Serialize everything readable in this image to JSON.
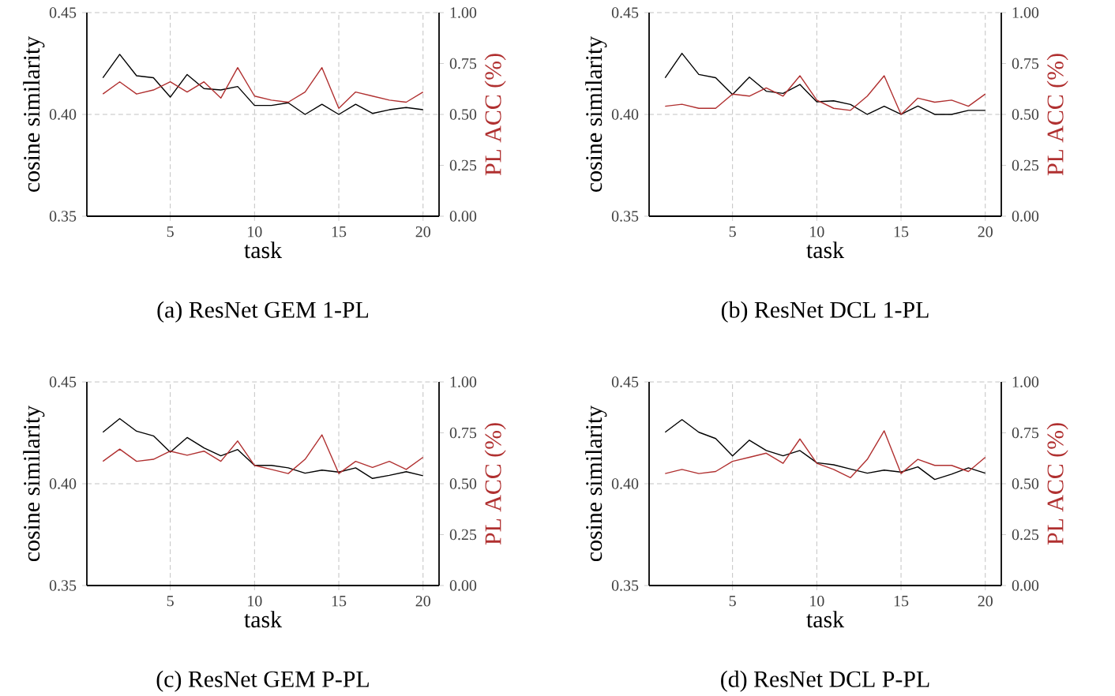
{
  "chart_data": [
    {
      "type": "line",
      "title": "(a) ResNet GEM 1-PL",
      "xlabel": "task",
      "ylabel": "cosine similarity",
      "y2label": "PL ACC (%)",
      "grid": true,
      "x": [
        1,
        2,
        3,
        4,
        5,
        6,
        7,
        8,
        9,
        10,
        11,
        12,
        13,
        14,
        15,
        16,
        17,
        18,
        19,
        20
      ],
      "xlim": [
        0.05,
        20.95
      ],
      "xticks": [
        5,
        10,
        15,
        20
      ],
      "ylim": [
        0.35,
        0.45
      ],
      "yticks": [
        {
          "value": 0.35,
          "label": "0.35"
        },
        {
          "value": 0.4,
          "label": "0.40"
        },
        {
          "value": 0.45,
          "label": "0.45"
        }
      ],
      "y2lim": [
        0,
        1
      ],
      "y2ticks": [
        {
          "value": 0,
          "label": "0.00"
        },
        {
          "value": 0.25,
          "label": "0.25"
        },
        {
          "value": 0.5,
          "label": "0.50"
        },
        {
          "value": 0.75,
          "label": "0.75"
        },
        {
          "value": 1,
          "label": "1.00"
        }
      ],
      "series": [
        {
          "color": "#000000",
          "values": [
            0.418,
            0.4295,
            0.419,
            0.418,
            0.4085,
            0.4196,
            0.4127,
            0.412,
            0.4137,
            0.4044,
            0.4044,
            0.4057,
            0.4,
            0.405,
            0.4,
            0.405,
            0.4005,
            0.4023,
            0.4034,
            0.4023
          ]
        },
        {
          "color": "#b03030",
          "axis": "y2",
          "values": [
            0.6,
            0.66,
            0.6,
            0.62,
            0.66,
            0.61,
            0.66,
            0.58,
            0.73,
            0.59,
            0.57,
            0.56,
            0.61,
            0.73,
            0.53,
            0.61,
            0.59,
            0.57,
            0.56,
            0.61
          ]
        }
      ]
    },
    {
      "type": "line",
      "title": "(b) ResNet DCL 1-PL",
      "xlabel": "task",
      "ylabel": "cosine similarity",
      "y2label": "PL ACC (%)",
      "grid": true,
      "x": [
        1,
        2,
        3,
        4,
        5,
        6,
        7,
        8,
        9,
        10,
        11,
        12,
        13,
        14,
        15,
        16,
        17,
        18,
        19,
        20
      ],
      "xlim": [
        0.05,
        20.95
      ],
      "xticks": [
        5,
        10,
        15,
        20
      ],
      "ylim": [
        0.35,
        0.45
      ],
      "yticks": [
        {
          "value": 0.35,
          "label": "0.35"
        },
        {
          "value": 0.4,
          "label": "0.40"
        },
        {
          "value": 0.45,
          "label": "0.45"
        }
      ],
      "y2lim": [
        0,
        1
      ],
      "y2ticks": [
        {
          "value": 0,
          "label": "0.00"
        },
        {
          "value": 0.25,
          "label": "0.25"
        },
        {
          "value": 0.5,
          "label": "0.50"
        },
        {
          "value": 0.75,
          "label": "0.75"
        },
        {
          "value": 1,
          "label": "1.00"
        }
      ],
      "series": [
        {
          "color": "#000000",
          "values": [
            0.418,
            0.43,
            0.4196,
            0.418,
            0.4098,
            0.4183,
            0.4114,
            0.4103,
            0.4147,
            0.4062,
            0.4067,
            0.4049,
            0.4,
            0.404,
            0.4,
            0.4041,
            0.4,
            0.4,
            0.402,
            0.402
          ]
        },
        {
          "color": "#b03030",
          "axis": "y2",
          "values": [
            0.54,
            0.55,
            0.53,
            0.53,
            0.6,
            0.59,
            0.63,
            0.59,
            0.69,
            0.57,
            0.53,
            0.52,
            0.59,
            0.69,
            0.5,
            0.58,
            0.56,
            0.57,
            0.54,
            0.6
          ]
        }
      ]
    },
    {
      "type": "line",
      "title": "(c) ResNet GEM P-PL",
      "xlabel": "task",
      "ylabel": "cosine similarity",
      "y2label": "PL ACC (%)",
      "grid": true,
      "x": [
        1,
        2,
        3,
        4,
        5,
        6,
        7,
        8,
        9,
        10,
        11,
        12,
        13,
        14,
        15,
        16,
        17,
        18,
        19,
        20
      ],
      "xlim": [
        0.05,
        20.95
      ],
      "xticks": [
        5,
        10,
        15,
        20
      ],
      "ylim": [
        0.35,
        0.45
      ],
      "yticks": [
        {
          "value": 0.35,
          "label": "0.35"
        },
        {
          "value": 0.4,
          "label": "0.40"
        },
        {
          "value": 0.45,
          "label": "0.45"
        }
      ],
      "y2lim": [
        0,
        1
      ],
      "y2ticks": [
        {
          "value": 0,
          "label": "0.00"
        },
        {
          "value": 0.25,
          "label": "0.25"
        },
        {
          "value": 0.5,
          "label": "0.50"
        },
        {
          "value": 0.75,
          "label": "0.75"
        },
        {
          "value": 1,
          "label": "1.00"
        }
      ],
      "series": [
        {
          "color": "#000000",
          "values": [
            0.4253,
            0.432,
            0.4258,
            0.4235,
            0.4155,
            0.4227,
            0.4176,
            0.4137,
            0.4168,
            0.409,
            0.409,
            0.4078,
            0.4052,
            0.4067,
            0.4057,
            0.4078,
            0.4026,
            0.4041,
            0.4059,
            0.4039
          ]
        },
        {
          "color": "#b03030",
          "axis": "y2",
          "values": [
            0.61,
            0.67,
            0.61,
            0.62,
            0.66,
            0.64,
            0.66,
            0.61,
            0.71,
            0.59,
            0.57,
            0.55,
            0.62,
            0.74,
            0.55,
            0.61,
            0.58,
            0.61,
            0.57,
            0.63
          ]
        }
      ]
    },
    {
      "type": "line",
      "title": "(d) ResNet DCL P-PL",
      "xlabel": "task",
      "ylabel": "cosine similarity",
      "y2label": "PL ACC (%)",
      "grid": true,
      "x": [
        1,
        2,
        3,
        4,
        5,
        6,
        7,
        8,
        9,
        10,
        11,
        12,
        13,
        14,
        15,
        16,
        17,
        18,
        19,
        20
      ],
      "xlim": [
        0.05,
        20.95
      ],
      "xticks": [
        5,
        10,
        15,
        20
      ],
      "ylim": [
        0.35,
        0.45
      ],
      "yticks": [
        {
          "value": 0.35,
          "label": "0.35"
        },
        {
          "value": 0.4,
          "label": "0.40"
        },
        {
          "value": 0.45,
          "label": "0.45"
        }
      ],
      "y2lim": [
        0,
        1
      ],
      "y2ticks": [
        {
          "value": 0,
          "label": "0.00"
        },
        {
          "value": 0.25,
          "label": "0.25"
        },
        {
          "value": 0.5,
          "label": "0.50"
        },
        {
          "value": 0.75,
          "label": "0.75"
        },
        {
          "value": 1,
          "label": "1.00"
        }
      ],
      "series": [
        {
          "color": "#000000",
          "values": [
            0.4253,
            0.4315,
            0.4253,
            0.4222,
            0.4137,
            0.4214,
            0.4163,
            0.4137,
            0.4163,
            0.4103,
            0.4093,
            0.4072,
            0.4052,
            0.4067,
            0.4057,
            0.4083,
            0.4021,
            0.4047,
            0.4078,
            0.4052
          ]
        },
        {
          "color": "#b03030",
          "axis": "y2",
          "values": [
            0.55,
            0.57,
            0.55,
            0.56,
            0.61,
            0.63,
            0.65,
            0.6,
            0.72,
            0.6,
            0.57,
            0.53,
            0.62,
            0.76,
            0.55,
            0.62,
            0.59,
            0.59,
            0.56,
            0.63
          ]
        }
      ]
    }
  ]
}
